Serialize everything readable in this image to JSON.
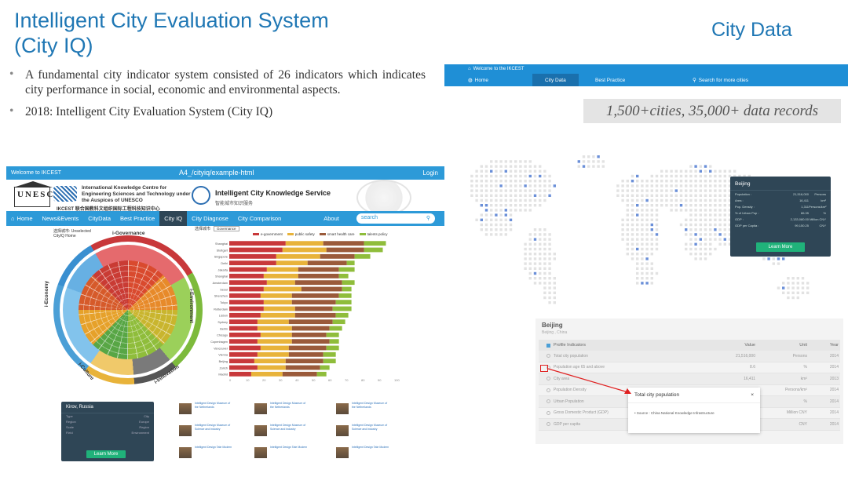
{
  "slide": {
    "title_line1": "Intelligent City Evaluation System",
    "title_line2": "(City IQ)",
    "right_title": "City Data",
    "bullets": [
      "A fundamental city indicator system consisted of 26 indicators which indicates city performance in social, economic and environmental aspects.",
      "2018: Intelligent City Evaluation System (City IQ)"
    ],
    "bullet_glyph": "•"
  },
  "left_shot": {
    "topbar_left": "Welcome to IKCEST",
    "url": "A4_/cityiq/example-html",
    "login": "Login",
    "unesco_text": "UNESCO",
    "ikc_name": "International Knowledge Centre for Engineering Sciences and Technology under the Auspices of UNESCO",
    "ikc_brand": "IKCEST",
    "ikc_cn": "联合国教科文组织国际工程科技知识中心",
    "ick_name": "Intelligent City Knowledge Service",
    "ick_cn": "智能城市知识服务",
    "nav": [
      {
        "label": "Home",
        "active": false
      },
      {
        "label": "News&Events",
        "active": false
      },
      {
        "label": "CityData",
        "active": false
      },
      {
        "label": "Best Practice",
        "active": false
      },
      {
        "label": "City IQ",
        "active": true
      },
      {
        "label": "City Diagnose",
        "active": false
      },
      {
        "label": "City Comparison",
        "active": false
      },
      {
        "label": "About",
        "active": false
      }
    ],
    "search_placeholder": "search",
    "wheel_crumb": "选择城市: Unselected",
    "wheel_crumb2": "CityIQ  Home",
    "wheel_labels": {
      "top": "i-Governance",
      "right": "i-Environment",
      "left": "i-Economy",
      "bottom_left": "i-Culture",
      "bottom_right": "i-Innovation"
    },
    "bars": {
      "head_label": "选择城市",
      "select_value": "Governance",
      "legend": [
        "e-government",
        "public safety",
        "smart health care",
        "talents policy"
      ],
      "legend_colors": [
        "#c8383a",
        "#e8b33a",
        "#9a5a3a",
        "#8fbd3b"
      ],
      "cities": [
        {
          "name": "Shanghai",
          "v": [
            36,
            24,
            26,
            14
          ]
        },
        {
          "name": "Stuttgart",
          "v": [
            34,
            28,
            24,
            12
          ]
        },
        {
          "name": "Singapore",
          "v": [
            30,
            28,
            22,
            10
          ]
        },
        {
          "name": "Delhi",
          "v": [
            30,
            20,
            25,
            5
          ]
        },
        {
          "name": "Jakarta",
          "v": [
            24,
            20,
            26,
            10
          ]
        },
        {
          "name": "Shanghai",
          "v": [
            22,
            22,
            26,
            6
          ]
        },
        {
          "name": "Amsterdam",
          "v": [
            24,
            18,
            30,
            8
          ]
        },
        {
          "name": "Seoul",
          "v": [
            22,
            24,
            26,
            6
          ]
        },
        {
          "name": "Shenzhen",
          "v": [
            20,
            20,
            30,
            8
          ]
        },
        {
          "name": "Tokyo",
          "v": [
            22,
            18,
            28,
            10
          ]
        },
        {
          "name": "Rotterdam",
          "v": [
            22,
            20,
            24,
            12
          ]
        },
        {
          "name": "Lisbon",
          "v": [
            20,
            22,
            26,
            8
          ]
        },
        {
          "name": "Sydney",
          "v": [
            18,
            20,
            28,
            8
          ]
        },
        {
          "name": "Berlin",
          "v": [
            18,
            22,
            24,
            8
          ]
        },
        {
          "name": "Chicago",
          "v": [
            20,
            20,
            22,
            8
          ]
        },
        {
          "name": "Copenhagen",
          "v": [
            18,
            22,
            24,
            6
          ]
        },
        {
          "name": "Vancouver",
          "v": [
            20,
            18,
            24,
            8
          ]
        },
        {
          "name": "Vienna",
          "v": [
            18,
            20,
            22,
            8
          ]
        },
        {
          "name": "Beijing",
          "v": [
            16,
            20,
            24,
            8
          ]
        },
        {
          "name": "Zurich",
          "v": [
            18,
            18,
            22,
            6
          ]
        },
        {
          "name": "Madrid",
          "v": [
            14,
            20,
            22,
            6
          ]
        }
      ],
      "axis_ticks": [
        "0",
        "10",
        "20",
        "30",
        "40",
        "50",
        "60",
        "70",
        "80",
        "90",
        "100"
      ]
    },
    "kirov_card": {
      "name": "Kirov, Russia",
      "rows": [
        {
          "k": "Type",
          "v": "City"
        },
        {
          "k": "Region",
          "v": "Europe"
        },
        {
          "k": "Scale",
          "v": "Region"
        },
        {
          "k": "Field",
          "v": "Environment"
        }
      ],
      "button": "Learn More"
    },
    "thumbs": [
      {
        "title": "Intelligent Design Museum of the Netherlands"
      },
      {
        "title": "Intelligent Design Museum of the Netherlands"
      },
      {
        "title": "Intelligent Design Museum of the Netherlands"
      },
      {
        "title": "Intelligent Design Museum of Science and industry"
      },
      {
        "title": "Intelligent Design Museum of Science and industry"
      },
      {
        "title": "Intelligent Design Museum of Science and industry"
      },
      {
        "title": "Intelligent Design Tate Modern"
      },
      {
        "title": "Intelligent Design Tate Modern"
      },
      {
        "title": "Intelligent Design Tate Modern"
      }
    ]
  },
  "right_shot": {
    "welcome": "Welcome to the IKCEST",
    "nav": [
      {
        "label": "Home",
        "active": false
      },
      {
        "label": "City Data",
        "active": true
      },
      {
        "label": "Best Practice",
        "active": false
      },
      {
        "label": "Search for more cities",
        "active": false
      }
    ],
    "records_banner": "1,500+cities, 35,000+ data records",
    "beijing_popup": {
      "name": "Beijing",
      "rows": [
        {
          "k": "Population :",
          "v": "21,516,000",
          "u": "Persons"
        },
        {
          "k": "Area :",
          "v": "16,411",
          "u": "km²"
        },
        {
          "k": "Pop. Density :",
          "v": "1,311",
          "u": "Persons/km²"
        },
        {
          "k": "% of Urban Pop :",
          "v": "86.35",
          "u": "%"
        },
        {
          "k": "GDP :",
          "v": "2,133,080.00",
          "u": "Million CNY"
        },
        {
          "k": "GDP per Capita :",
          "v": "99,150.25",
          "u": "CNY"
        }
      ],
      "button": "Learn More"
    },
    "profile": {
      "city": "Beijing",
      "sub": "Beijing , China",
      "headers": {
        "name": "Profile Indicators",
        "value": "Value",
        "unit": "Unit",
        "year": "Year"
      },
      "rows": [
        {
          "name": "Total city population",
          "value": "21,516,000",
          "unit": "Persons",
          "year": "2014"
        },
        {
          "name": "Population age 65 and above",
          "value": "8.6",
          "unit": "%",
          "year": "2014"
        },
        {
          "name": "City area",
          "value": "16,411",
          "unit": "km²",
          "year": "2013"
        },
        {
          "name": "Population Density",
          "value": "1,311",
          "unit": "Persons/km²",
          "year": "2014"
        },
        {
          "name": "Urban Population",
          "value": "86.35",
          "unit": "%",
          "year": "2014"
        },
        {
          "name": "Gross Domestic Product (GDP)",
          "value": "2,133,080",
          "unit": "Million CNY",
          "year": "2014"
        },
        {
          "name": "GDP per capita",
          "value": "99,150.2",
          "unit": "CNY",
          "year": "2014"
        }
      ],
      "tooltip": {
        "title": "Total city population",
        "close": "×",
        "source": "• Source : China National Knowledge Infrastructure"
      }
    }
  }
}
